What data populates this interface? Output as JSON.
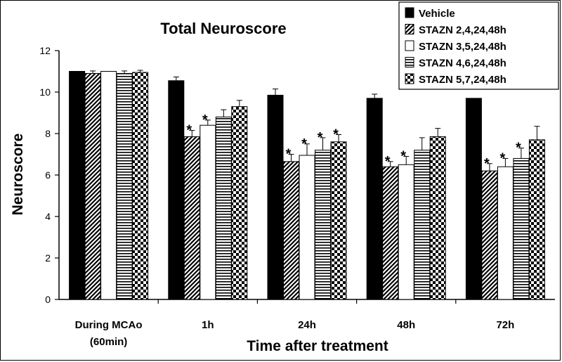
{
  "chart_data": {
    "type": "bar",
    "title": "Total Neuroscore",
    "xlabel": "Time after treatment",
    "ylabel": "Neuroscore",
    "ylim": [
      0,
      12
    ],
    "yticks": [
      "0",
      "2",
      "4",
      "6",
      "8",
      "10",
      "12"
    ],
    "grid": false,
    "legend_position": "top-right",
    "categories": [
      [
        "During MCAo",
        "(60min)"
      ],
      [
        "1h"
      ],
      [
        "24h"
      ],
      [
        "48h"
      ],
      [
        "72h"
      ]
    ],
    "series": [
      {
        "name": "Vehicle",
        "pattern": "solid",
        "values": [
          11.0,
          10.55,
          9.85,
          9.7,
          9.7
        ],
        "errors": [
          0.0,
          0.18,
          0.3,
          0.2,
          0.0
        ],
        "significant": [
          false,
          false,
          false,
          false,
          false
        ]
      },
      {
        "name": "STAZN 2,4,24,48h",
        "pattern": "diagonal",
        "values": [
          10.9,
          7.85,
          6.65,
          6.4,
          6.2
        ],
        "errors": [
          0.12,
          0.3,
          0.35,
          0.25,
          0.35
        ],
        "significant": [
          false,
          true,
          true,
          true,
          true
        ]
      },
      {
        "name": "STAZN 3,5,24,48h",
        "pattern": "open",
        "values": [
          11.0,
          8.4,
          6.95,
          6.5,
          6.4
        ],
        "errors": [
          0.0,
          0.25,
          0.55,
          0.4,
          0.4
        ],
        "significant": [
          false,
          true,
          true,
          true,
          true
        ]
      },
      {
        "name": "STAZN 4,6,24,48h",
        "pattern": "horizontal",
        "values": [
          10.9,
          8.8,
          7.2,
          7.2,
          6.8
        ],
        "errors": [
          0.12,
          0.35,
          0.6,
          0.6,
          0.5
        ],
        "significant": [
          false,
          false,
          true,
          false,
          true
        ]
      },
      {
        "name": "STAZN 5,7,24,48h",
        "pattern": "checker",
        "values": [
          10.95,
          9.3,
          7.6,
          7.85,
          7.7
        ],
        "errors": [
          0.1,
          0.3,
          0.35,
          0.4,
          0.65
        ],
        "significant": [
          false,
          false,
          true,
          false,
          false
        ]
      }
    ],
    "significance_marker": "*"
  }
}
